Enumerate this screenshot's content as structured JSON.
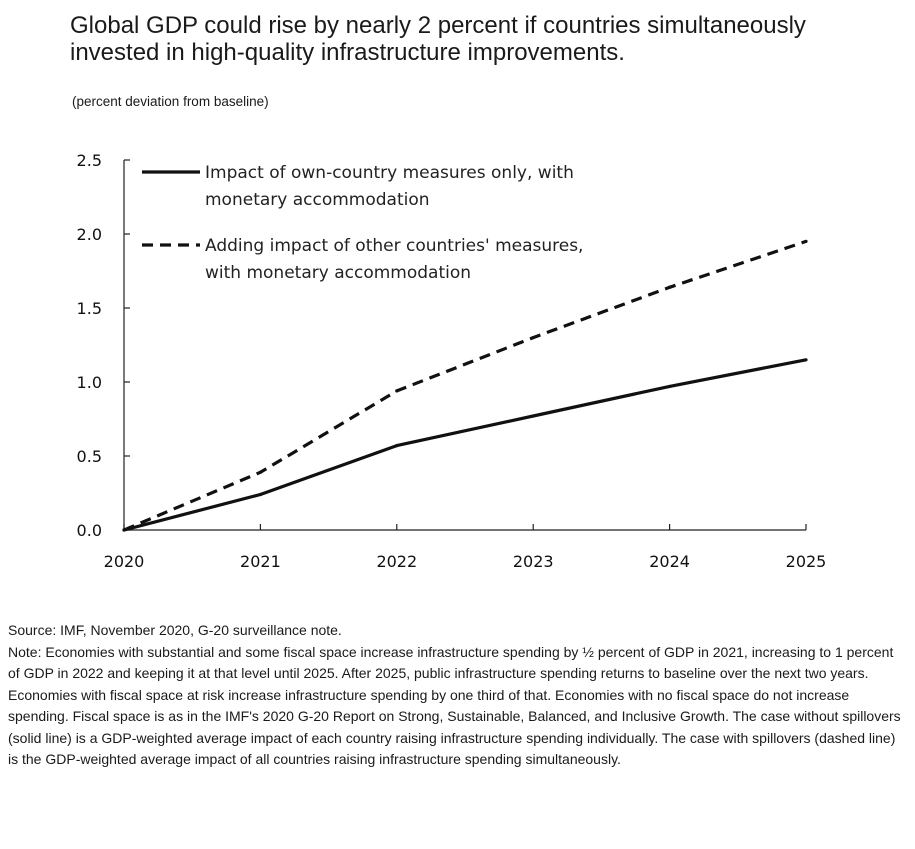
{
  "title": "Global GDP could rise by nearly 2 percent if countries simultaneously invested in high-quality infrastructure improvements.",
  "subtitle": "(percent deviation from baseline)",
  "chart_data": {
    "type": "line",
    "x": [
      "2020",
      "2021",
      "2022",
      "2023",
      "2024",
      "2025"
    ],
    "series": [
      {
        "name": "Impact of own-country measures only, with monetary accommodation",
        "legend_lines": [
          "Impact of own-country measures only, with",
          "monetary accommodation"
        ],
        "style": "solid",
        "values": [
          0.0,
          0.24,
          0.57,
          0.77,
          0.97,
          1.15
        ]
      },
      {
        "name": "Adding impact of other countries' measures, with monetary accommodation",
        "legend_lines": [
          "Adding impact of other countries' measures,",
          "with monetary accommodation"
        ],
        "style": "dashed",
        "values": [
          0.0,
          0.39,
          0.94,
          1.3,
          1.64,
          1.95
        ]
      }
    ],
    "ylim": [
      0,
      2.5
    ],
    "yticks": [
      "0.0",
      "0.5",
      "1.0",
      "1.5",
      "2.0",
      "2.5"
    ],
    "xlabel": "",
    "ylabel": "",
    "legend_position": "top-left",
    "grid": false
  },
  "footer": {
    "source": "Source: IMF, November 2020, G-20 surveillance note.",
    "note": "Note: Economies with substantial and some fiscal space increase infrastructure spending by ½ percent of GDP in 2021, increasing to 1 percent of GDP in 2022 and keeping it at that level until 2025. After 2025, public infrastructure spending returns to baseline over the next two years. Economies with fiscal space at risk increase infrastructure spending by one third of that. Economies with no fiscal space do not increase spending. Fiscal space is as in the IMF's 2020 G-20 Report on Strong, Sustainable, Balanced, and Inclusive Growth. The case without spillovers (solid line) is a GDP-weighted average impact of each country raising infrastructure spending individually. The case with spillovers (dashed line) is the GDP-weighted average impact of all countries raising infrastructure spending simultaneously."
  }
}
